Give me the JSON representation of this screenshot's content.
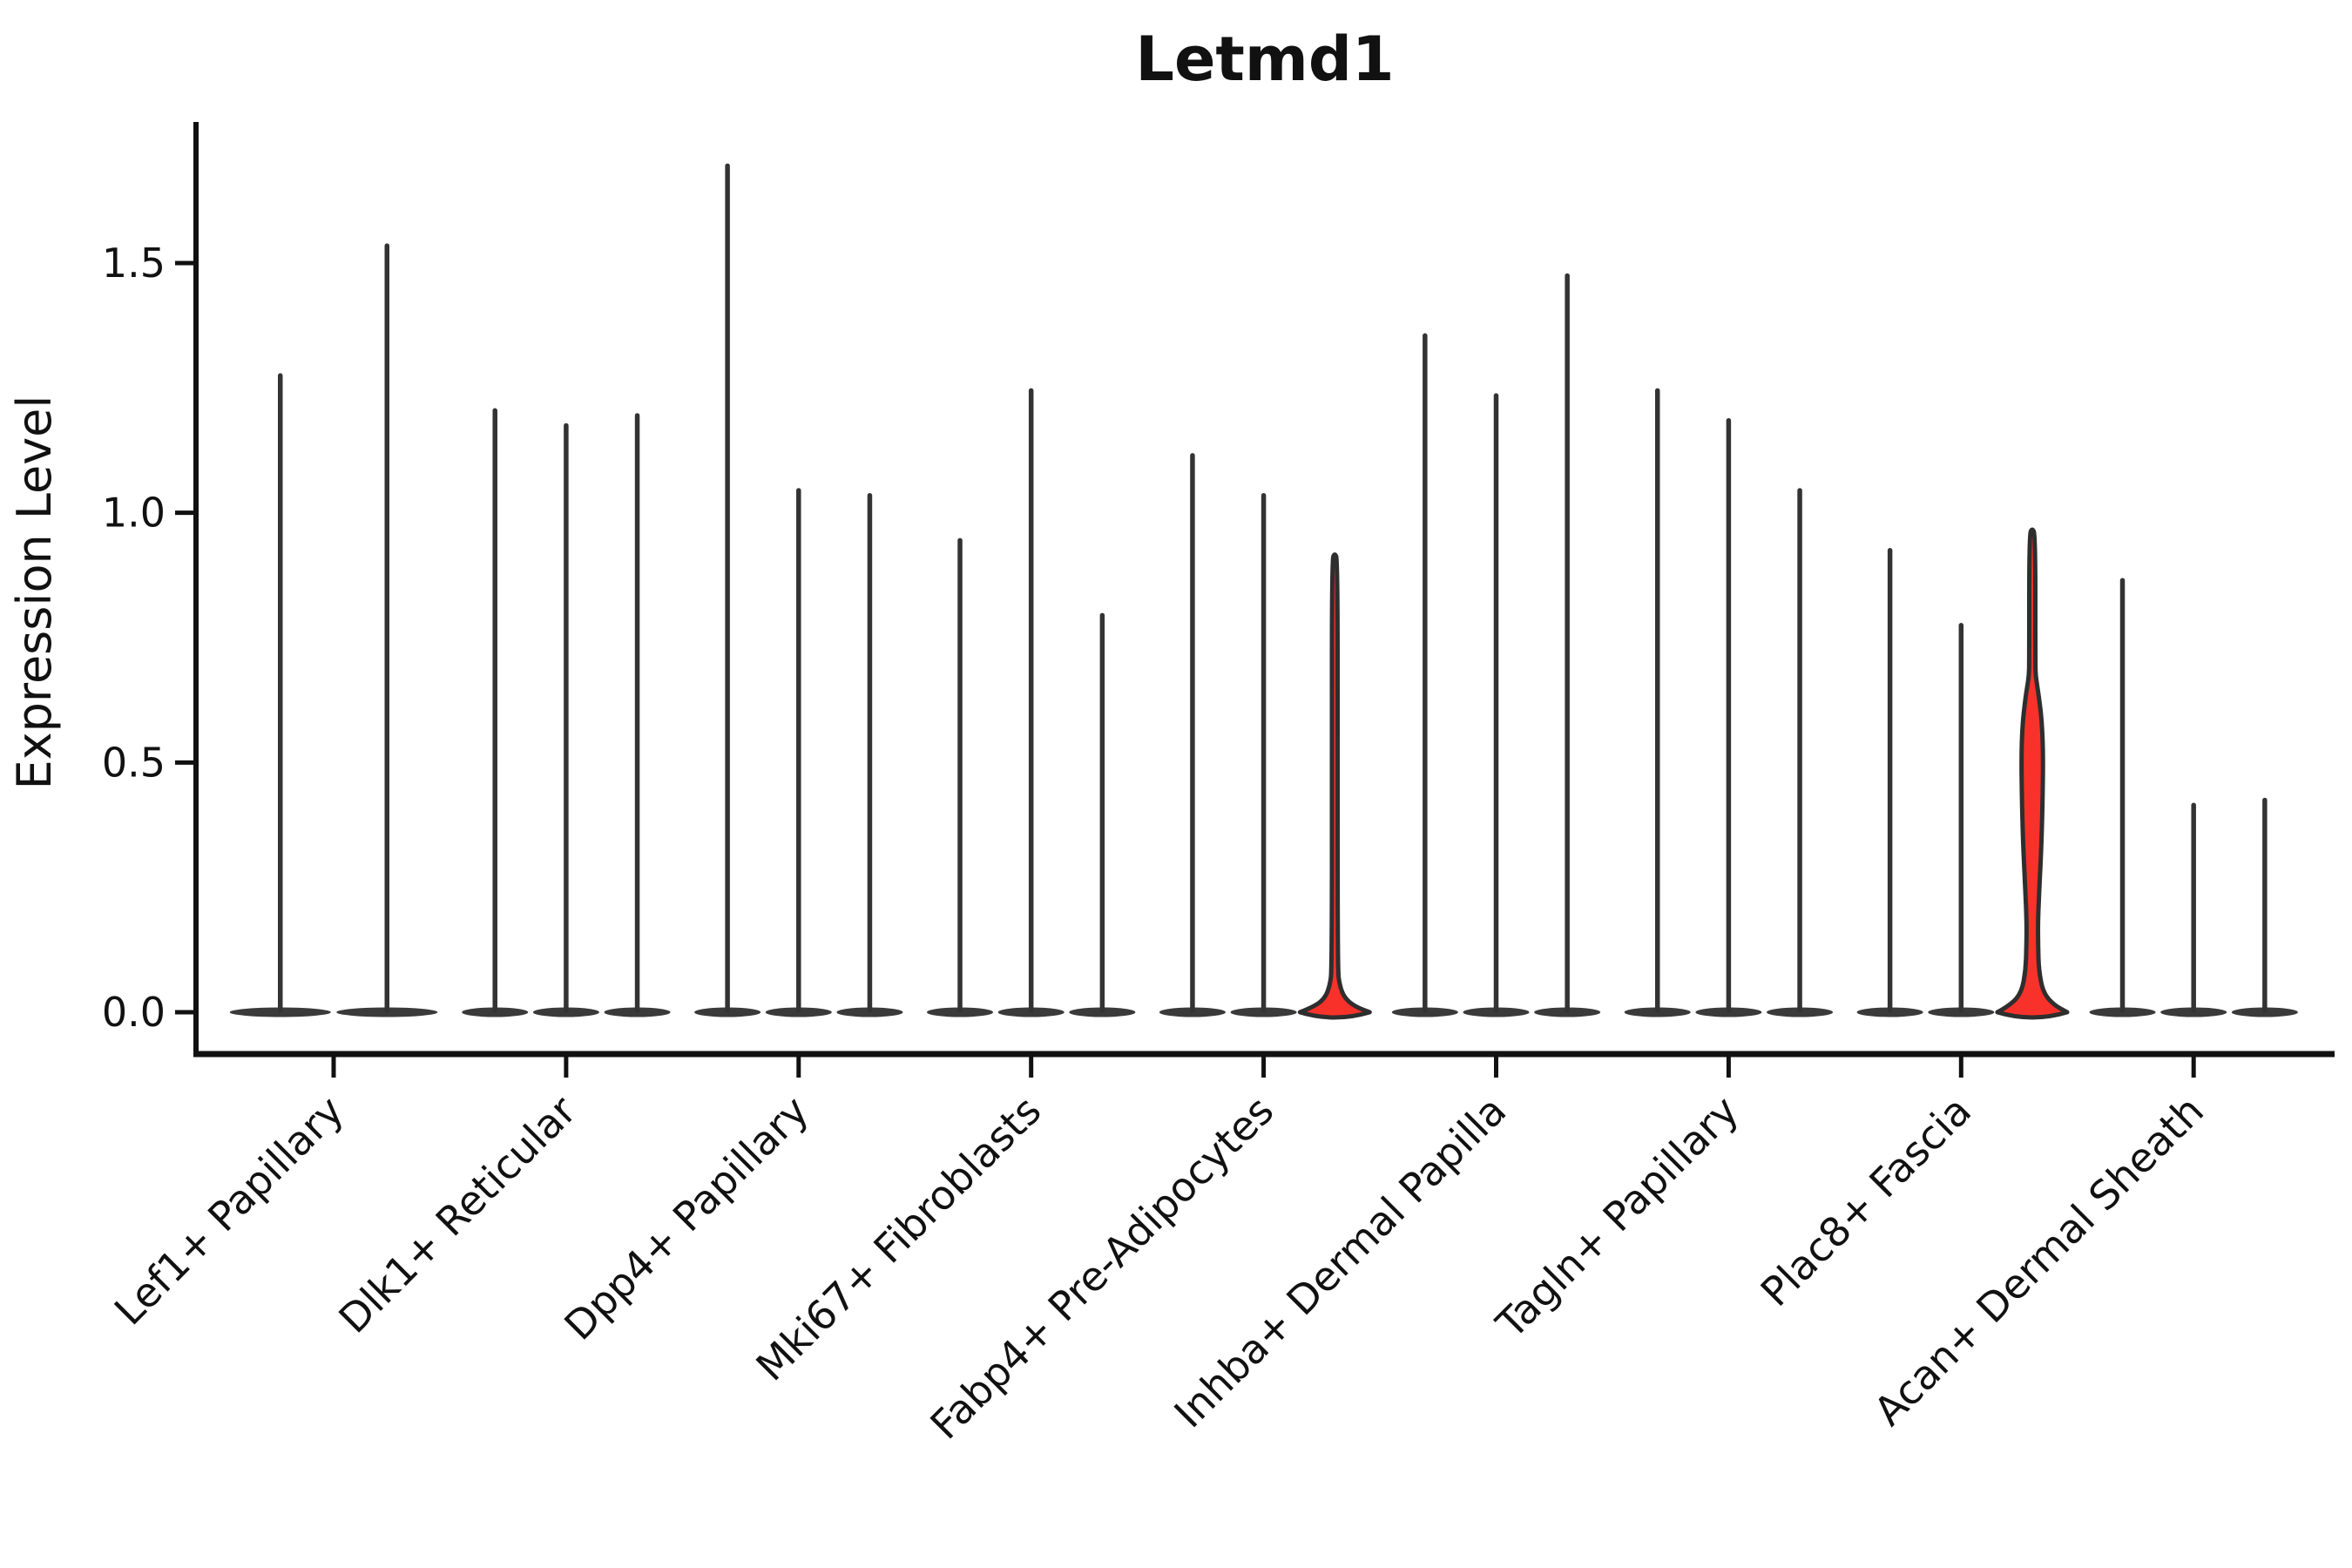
{
  "figure": {
    "title": "Letmd1",
    "y_axis_label": "Expression Level"
  },
  "chart_data": {
    "type": "violin",
    "title": "Letmd1",
    "xlabel": "",
    "ylabel": "Expression Level",
    "ytick_labels": [
      "0.0",
      "0.5",
      "1.0",
      "1.5"
    ],
    "ytick_values": [
      0.0,
      0.5,
      1.0,
      1.5
    ],
    "ylim": [
      -0.09,
      1.78
    ],
    "grid": false,
    "legend_position": "none",
    "x_tick_rotation": 45,
    "categories": [
      "Lef1+ Papillary",
      "Dlk1+ Reticular",
      "Dpp4+ Papillary",
      "Mki67+ Fibroblasts",
      "Fabp4+ Pre-Adipocytes",
      "Inhba+ Dermal Papilla",
      "Tagln+ Papillary",
      "Plac8+ Fascia",
      "Acan+ Dermal Sheath"
    ],
    "groups": [
      {
        "category": "Lef1+ Papillary",
        "violins": [
          {
            "max": 1.28,
            "highlight": false
          },
          {
            "max": 1.54,
            "highlight": false
          }
        ]
      },
      {
        "category": "Dlk1+ Reticular",
        "violins": [
          {
            "max": 1.21,
            "highlight": false
          },
          {
            "max": 1.18,
            "highlight": false
          },
          {
            "max": 1.2,
            "highlight": false
          }
        ]
      },
      {
        "category": "Dpp4+ Papillary",
        "violins": [
          {
            "max": 1.7,
            "highlight": false
          },
          {
            "max": 1.05,
            "highlight": false
          },
          {
            "max": 1.04,
            "highlight": false
          }
        ]
      },
      {
        "category": "Mki67+ Fibroblasts",
        "violins": [
          {
            "max": 0.95,
            "highlight": false
          },
          {
            "max": 1.25,
            "highlight": false
          },
          {
            "max": 0.8,
            "highlight": false
          }
        ]
      },
      {
        "category": "Fabp4+ Pre-Adipocytes",
        "violins": [
          {
            "max": 1.12,
            "highlight": false
          },
          {
            "max": 1.04,
            "highlight": false
          },
          {
            "max": 0.92,
            "highlight": true,
            "profile": [
              [
                0.0,
                0.98
              ],
              [
                0.012,
                0.55
              ],
              [
                0.03,
                0.26
              ],
              [
                0.055,
                0.135
              ],
              [
                0.085,
                0.082
              ],
              [
                0.5,
                0.08
              ],
              [
                0.905,
                0.08
              ],
              [
                0.92,
                0.001
              ]
            ]
          }
        ]
      },
      {
        "category": "Inhba+ Dermal Papilla",
        "violins": [
          {
            "max": 1.36,
            "highlight": false
          },
          {
            "max": 1.24,
            "highlight": false
          },
          {
            "max": 1.48,
            "highlight": false
          }
        ]
      },
      {
        "category": "Tagln+ Papillary",
        "violins": [
          {
            "max": 1.25,
            "highlight": false
          },
          {
            "max": 1.19,
            "highlight": false
          },
          {
            "max": 1.05,
            "highlight": false
          }
        ]
      },
      {
        "category": "Plac8+ Fascia",
        "violins": [
          {
            "max": 0.93,
            "highlight": false
          },
          {
            "max": 0.78,
            "highlight": false
          },
          {
            "max": 0.97,
            "highlight": true,
            "profile": [
              [
                0.0,
                0.98
              ],
              [
                0.015,
                0.6
              ],
              [
                0.04,
                0.3
              ],
              [
                0.085,
                0.185
              ],
              [
                0.13,
                0.165
              ],
              [
                0.18,
                0.158
              ],
              [
                0.25,
                0.2
              ],
              [
                0.34,
                0.26
              ],
              [
                0.44,
                0.295
              ],
              [
                0.52,
                0.305
              ],
              [
                0.58,
                0.27
              ],
              [
                0.625,
                0.2
              ],
              [
                0.655,
                0.135
              ],
              [
                0.675,
                0.095
              ],
              [
                0.7,
                0.086
              ],
              [
                0.955,
                0.086
              ],
              [
                0.97,
                0.001
              ]
            ]
          }
        ]
      },
      {
        "category": "Acan+ Dermal Sheath",
        "violins": [
          {
            "max": 0.87,
            "highlight": false
          },
          {
            "max": 0.42,
            "highlight": false
          },
          {
            "max": 0.43,
            "highlight": false
          }
        ]
      }
    ],
    "colors": {
      "violin_line": "#333333",
      "violin_base": "#3a3a3a",
      "highlight_fill": "#f8322a",
      "highlight_stroke": "#2e2e2e",
      "axis": "#111111",
      "background": "#ffffff"
    }
  }
}
